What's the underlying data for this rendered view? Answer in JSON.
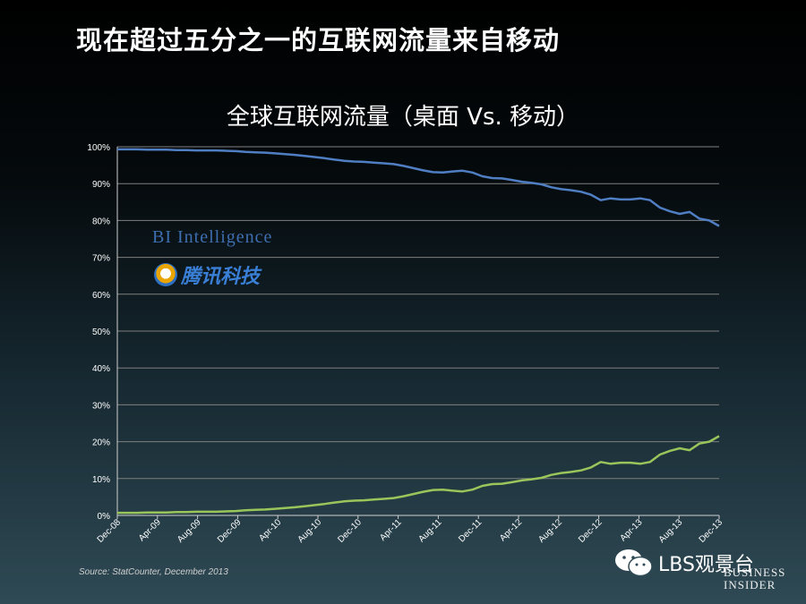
{
  "slide": {
    "title": "现在超过五分之一的互联网流量来自移动"
  },
  "chart_data": {
    "type": "line",
    "title": "全球互联网流量（桌面 Vs. 移动）",
    "y_ticks": [
      "0%",
      "10%",
      "20%",
      "30%",
      "40%",
      "50%",
      "60%",
      "70%",
      "80%",
      "90%",
      "100%"
    ],
    "ylim": [
      0,
      100
    ],
    "x_tick_labels": [
      "Dec-08",
      "Apr-09",
      "Aug-09",
      "Dec-09",
      "Apr-10",
      "Aug-10",
      "Dec-10",
      "Apr-11",
      "Aug-11",
      "Dec-11",
      "Apr-12",
      "Aug-12",
      "Dec-12",
      "Apr-13",
      "Aug-13",
      "Dec-13"
    ],
    "grid": true,
    "series": [
      {
        "color": "#4f7ec3",
        "values": [
          99.3,
          99.3,
          99.3,
          99.2,
          99.2,
          99.2,
          99.1,
          99.1,
          99.0,
          99.0,
          99.0,
          98.9,
          98.8,
          98.6,
          98.5,
          98.4,
          98.2,
          98.0,
          97.8,
          97.5,
          97.2,
          96.9,
          96.5,
          96.2,
          96.0,
          95.9,
          95.7,
          95.5,
          95.3,
          94.8,
          94.2,
          93.6,
          93.1,
          93.0,
          93.3,
          93.5,
          93.0,
          92.0,
          91.5,
          91.4,
          91.0,
          90.5,
          90.2,
          89.8,
          89.0,
          88.5,
          88.2,
          87.8,
          87.0,
          85.5,
          86.0,
          85.7,
          85.7,
          86.0,
          85.5,
          83.5,
          82.5,
          81.8,
          82.3,
          80.5,
          80.0,
          78.5
        ]
      },
      {
        "color": "#99c55b",
        "values": [
          0.7,
          0.7,
          0.7,
          0.8,
          0.8,
          0.8,
          0.9,
          0.9,
          1.0,
          1.0,
          1.0,
          1.1,
          1.2,
          1.4,
          1.5,
          1.6,
          1.8,
          2.0,
          2.2,
          2.5,
          2.8,
          3.1,
          3.5,
          3.8,
          4.0,
          4.1,
          4.3,
          4.5,
          4.7,
          5.2,
          5.8,
          6.4,
          6.9,
          7.0,
          6.7,
          6.5,
          7.0,
          8.0,
          8.5,
          8.6,
          9.0,
          9.5,
          9.8,
          10.2,
          11.0,
          11.5,
          11.8,
          12.2,
          13.0,
          14.5,
          14.0,
          14.3,
          14.3,
          14.0,
          14.5,
          16.5,
          17.5,
          18.2,
          17.7,
          19.5,
          20.0,
          21.5
        ]
      }
    ]
  },
  "logos": {
    "bi_intelligence": "BI Intelligence",
    "tencent_tech": "腾讯科技"
  },
  "source": "Source: StatCounter, December 2013",
  "watermark": {
    "wechat_account": "LBS观景台",
    "brand_line1": "BUSINESS",
    "brand_line2": "INSIDER"
  }
}
